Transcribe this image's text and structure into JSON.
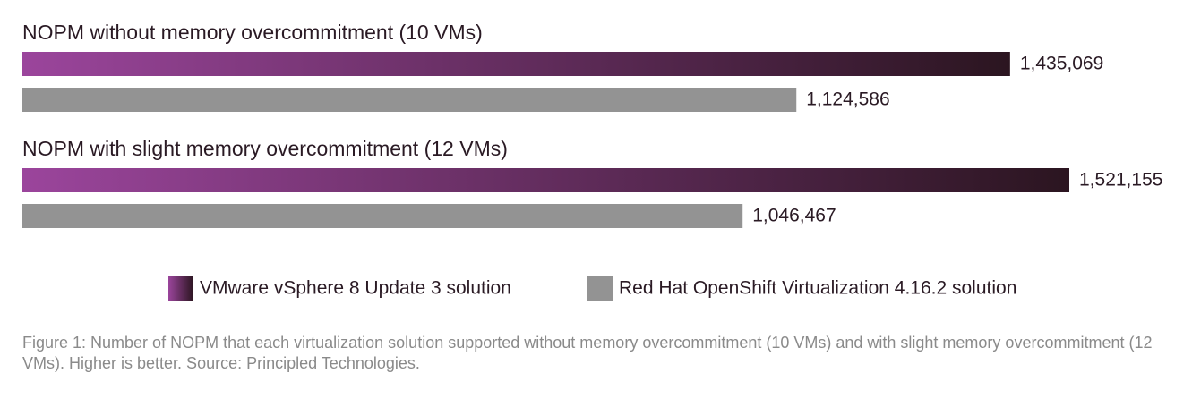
{
  "chart_data": {
    "type": "hbar",
    "categories": [
      "NOPM without memory overcommitment (10 VMs)",
      "NOPM with slight memory overcommitment (12 VMs)"
    ],
    "series": [
      {
        "name": "VMware vSphere 8 Update 3 solution",
        "color": "#9b459c",
        "gradient": [
          "#9b459c",
          "#2b1520"
        ],
        "values": [
          1435069,
          1521155
        ],
        "value_labels": [
          "1,435,069",
          "1,521,155"
        ]
      },
      {
        "name": "Red Hat OpenShift Virtualization 4.16.2 solution",
        "color": "#939393",
        "values": [
          1124586,
          1046467
        ],
        "value_labels": [
          "1,124,586",
          "1,046,467"
        ]
      }
    ],
    "caption": "Figure 1: Number of NOPM that each virtualization solution supported without memory overcommitment (10 VMs) and with slight memory overcommitment (12 VMs). Higher is better. Source: Principled Technologies."
  }
}
